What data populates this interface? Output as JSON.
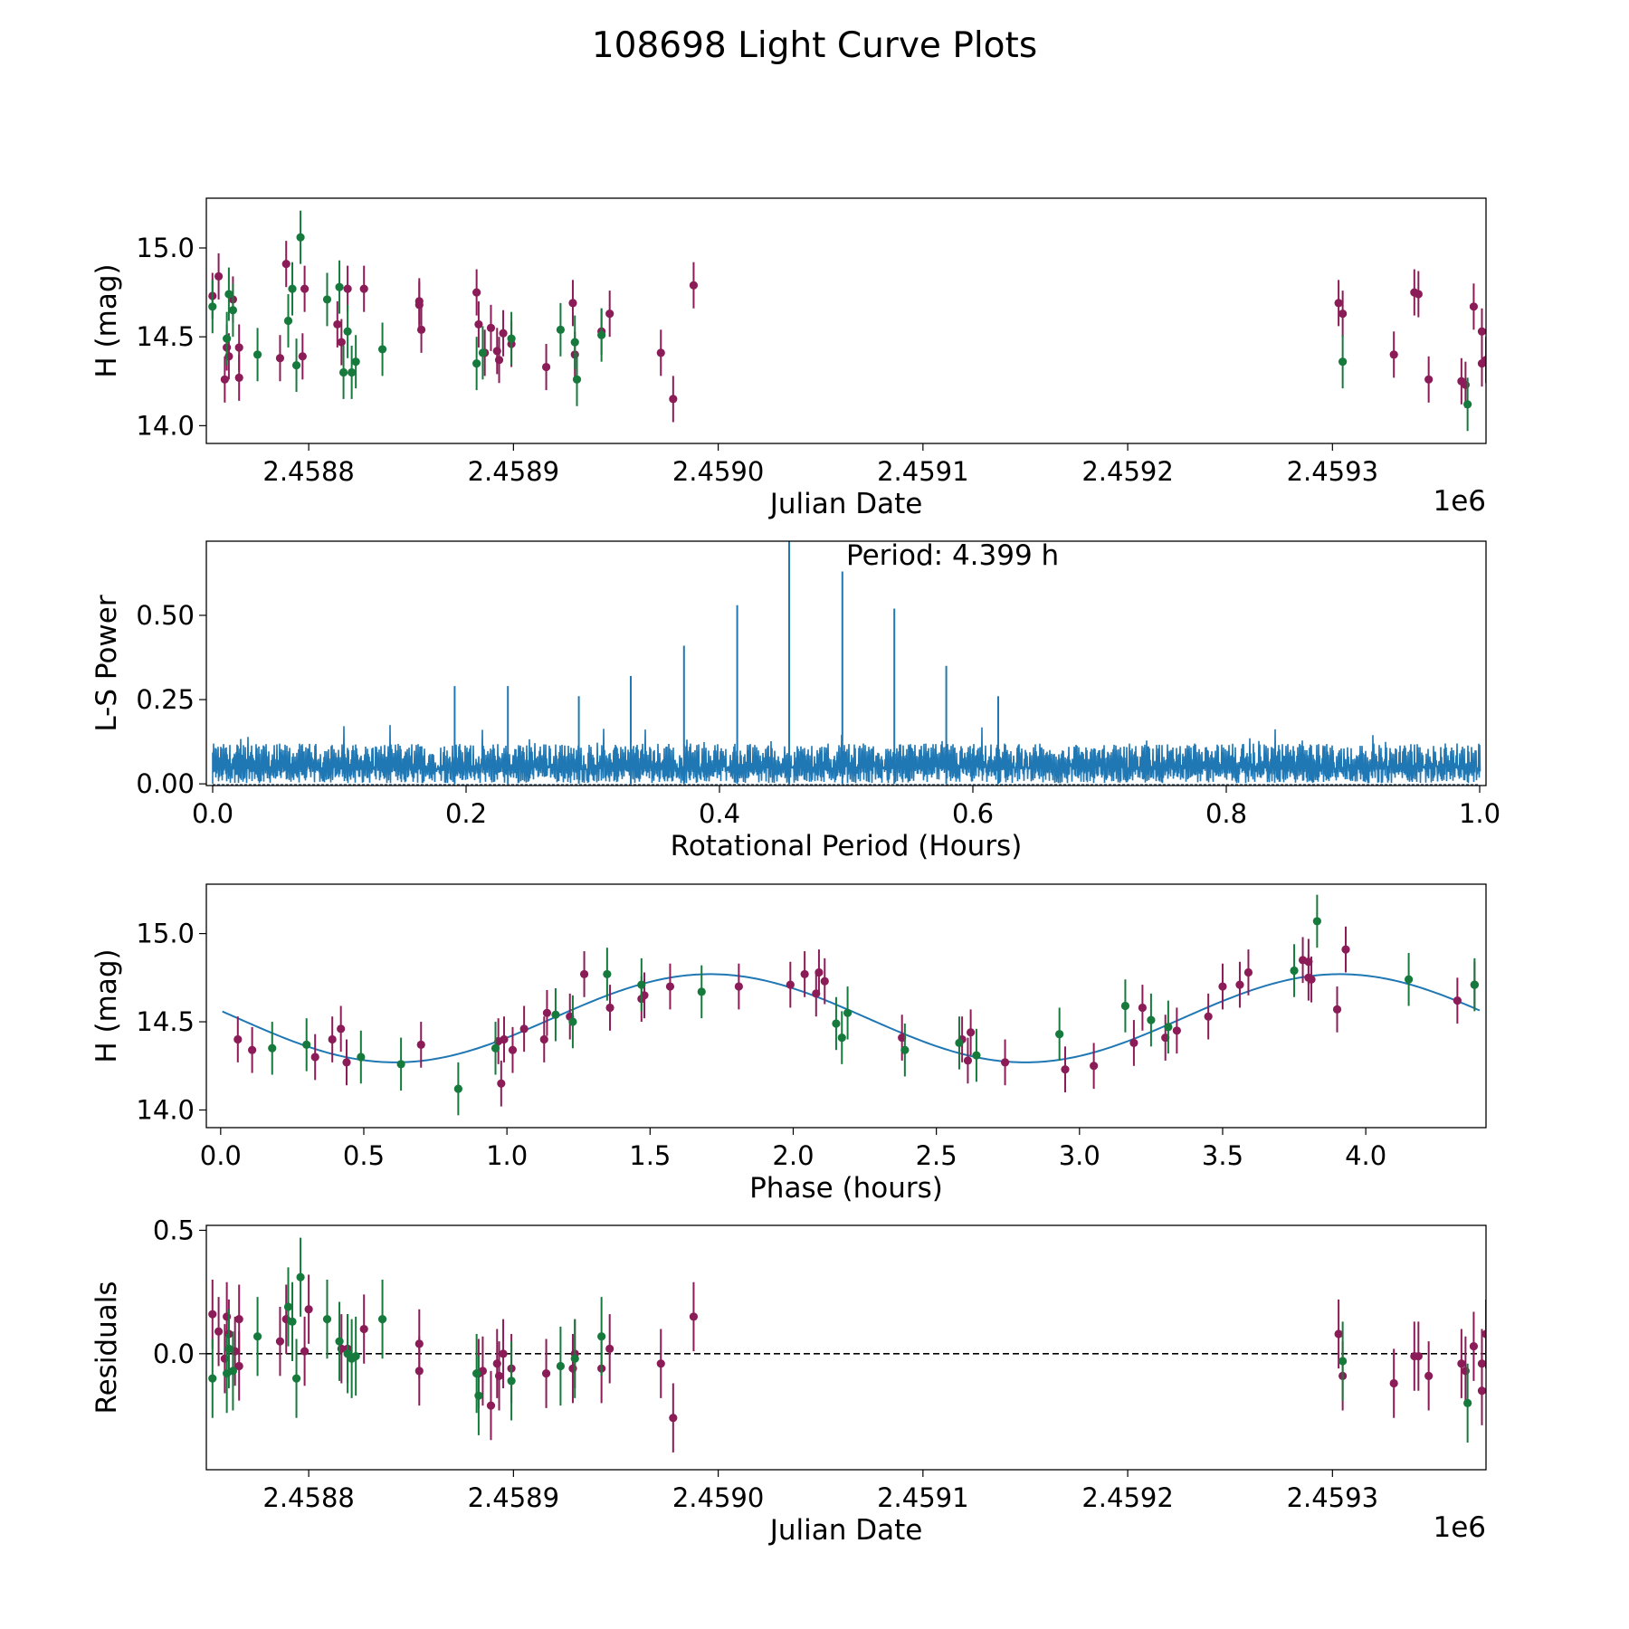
{
  "figure": {
    "title": "108698 Light Curve Plots"
  },
  "colors": {
    "pink": "#8c1c58",
    "green": "#167a3c",
    "blue": "#1f77b4"
  },
  "chart_data": [
    {
      "id": "lc",
      "type": "scatter",
      "xlabel": "Julian Date",
      "ylabel": "H (mag)",
      "offset_label": "1e6",
      "xlim": [
        2458720,
        2459345
      ],
      "ylim": [
        13.9,
        15.28
      ],
      "yinvert": false,
      "xticks": [
        2458770,
        2458870,
        2458970,
        2459070,
        2459170,
        2459270
      ],
      "xtick_labels": [
        "2.4588",
        "2.4589",
        "2.4590",
        "2.4591",
        "2.4592",
        "2.4593"
      ],
      "yticks": [
        14.0,
        14.5,
        15.0
      ],
      "ytick_labels": [
        "14.0",
        "14.5",
        "15.0"
      ],
      "series": [
        {
          "name": "pink",
          "color": "pink",
          "err": 0.13,
          "points": [
            [
              2458723,
              14.73
            ],
            [
              2458726,
              14.84
            ],
            [
              2458729,
              14.26
            ],
            [
              2458730,
              14.44
            ],
            [
              2458731,
              14.39
            ],
            [
              2458733,
              14.71
            ],
            [
              2458736,
              14.27
            ],
            [
              2458736,
              14.44
            ],
            [
              2458756,
              14.38
            ],
            [
              2458759,
              14.91
            ],
            [
              2458767,
              14.39
            ],
            [
              2458768,
              14.77
            ],
            [
              2458784,
              14.57
            ],
            [
              2458786,
              14.47
            ],
            [
              2458789,
              14.77
            ],
            [
              2458797,
              14.77
            ],
            [
              2458824,
              14.7
            ],
            [
              2458824,
              14.68
            ],
            [
              2458825,
              14.54
            ],
            [
              2458852,
              14.75
            ],
            [
              2458853,
              14.57
            ],
            [
              2458856,
              14.41
            ],
            [
              2458859,
              14.55
            ],
            [
              2458862,
              14.42
            ],
            [
              2458863,
              14.37
            ],
            [
              2458865,
              14.52
            ],
            [
              2458869,
              14.46
            ],
            [
              2458886,
              14.33
            ],
            [
              2458899,
              14.69
            ],
            [
              2458900,
              14.4
            ],
            [
              2458913,
              14.53
            ],
            [
              2458917,
              14.63
            ],
            [
              2458942,
              14.41
            ],
            [
              2458948,
              14.15
            ],
            [
              2458958,
              14.79
            ],
            [
              2459273,
              14.69
            ],
            [
              2459275,
              14.63
            ],
            [
              2459300,
              14.4
            ],
            [
              2459310,
              14.75
            ],
            [
              2459312,
              14.74
            ],
            [
              2459317,
              14.26
            ],
            [
              2459333,
              14.25
            ],
            [
              2459335,
              14.23
            ],
            [
              2459339,
              14.67
            ],
            [
              2459343,
              14.53
            ],
            [
              2459343,
              14.35
            ],
            [
              2459345,
              14.37
            ],
            [
              2459347,
              14.3
            ]
          ]
        },
        {
          "name": "green",
          "color": "green",
          "err": 0.15,
          "points": [
            [
              2458723,
              14.67
            ],
            [
              2458730,
              14.49
            ],
            [
              2458731,
              14.74
            ],
            [
              2458733,
              14.65
            ],
            [
              2458745,
              14.4
            ],
            [
              2458760,
              14.59
            ],
            [
              2458762,
              14.77
            ],
            [
              2458764,
              14.34
            ],
            [
              2458766,
              15.06
            ],
            [
              2458779,
              14.71
            ],
            [
              2458785,
              14.78
            ],
            [
              2458787,
              14.3
            ],
            [
              2458789,
              14.53
            ],
            [
              2458791,
              14.3
            ],
            [
              2458793,
              14.36
            ],
            [
              2458806,
              14.43
            ],
            [
              2458852,
              14.35
            ],
            [
              2458855,
              14.41
            ],
            [
              2458869,
              14.49
            ],
            [
              2458893,
              14.54
            ],
            [
              2458900,
              14.47
            ],
            [
              2458901,
              14.26
            ],
            [
              2458913,
              14.51
            ],
            [
              2459275,
              14.36
            ],
            [
              2459336,
              14.12
            ]
          ]
        }
      ]
    },
    {
      "id": "ls",
      "type": "line",
      "xlabel": "Rotational Period (Hours)",
      "ylabel": "L-S Power",
      "annotation": "Period: 4.399 h",
      "xlim": [
        -0.005,
        1.005
      ],
      "ylim": [
        -0.005,
        0.72
      ],
      "xticks": [
        0.0,
        0.2,
        0.4,
        0.6,
        0.8,
        1.0
      ],
      "xtick_labels": [
        "0.0",
        "0.2",
        "0.4",
        "0.6",
        "0.8",
        "1.0"
      ],
      "yticks": [
        0.0,
        0.25,
        0.5
      ],
      "ytick_labels": [
        "0.00",
        "0.25",
        "0.50"
      ],
      "noise": {
        "x_range": [
          0.0,
          1.0
        ],
        "typical_max": 0.12,
        "max": 0.2
      },
      "peaks": [
        {
          "x": 0.455,
          "y": 0.72
        },
        {
          "x": 0.497,
          "y": 0.63
        },
        {
          "x": 0.414,
          "y": 0.53
        },
        {
          "x": 0.538,
          "y": 0.52
        },
        {
          "x": 0.372,
          "y": 0.41
        },
        {
          "x": 0.579,
          "y": 0.35
        },
        {
          "x": 0.33,
          "y": 0.32
        },
        {
          "x": 0.191,
          "y": 0.29
        },
        {
          "x": 0.233,
          "y": 0.29
        },
        {
          "x": 0.289,
          "y": 0.26
        },
        {
          "x": 0.62,
          "y": 0.26
        }
      ]
    },
    {
      "id": "phase",
      "type": "scatter",
      "xlabel": "Phase (hours)",
      "ylabel": "H (mag)",
      "xlim": [
        -0.05,
        4.42
      ],
      "ylim": [
        13.9,
        15.28
      ],
      "xticks": [
        0.0,
        0.5,
        1.0,
        1.5,
        2.0,
        2.5,
        3.0,
        3.5,
        4.0
      ],
      "xtick_labels": [
        "0.0",
        "0.5",
        "1.0",
        "1.5",
        "2.0",
        "2.5",
        "3.0",
        "3.5",
        "4.0"
      ],
      "yticks": [
        14.0,
        14.5,
        15.0
      ],
      "ytick_labels": [
        "14.0",
        "14.5",
        "15.0"
      ],
      "model": {
        "mean": 14.52,
        "amplitude": 0.25,
        "period": 2.2,
        "max_phase": 1.71
      },
      "series": [
        {
          "name": "pink",
          "color": "pink",
          "err": 0.13,
          "points": [
            [
              0.06,
              14.4
            ],
            [
              0.11,
              14.34
            ],
            [
              0.33,
              14.3
            ],
            [
              0.39,
              14.4
            ],
            [
              0.42,
              14.46
            ],
            [
              0.44,
              14.27
            ],
            [
              0.7,
              14.37
            ],
            [
              0.97,
              14.39
            ],
            [
              0.99,
              14.4
            ],
            [
              0.98,
              14.15
            ],
            [
              1.02,
              14.34
            ],
            [
              1.06,
              14.46
            ],
            [
              1.13,
              14.4
            ],
            [
              1.14,
              14.55
            ],
            [
              1.22,
              14.53
            ],
            [
              1.27,
              14.77
            ],
            [
              1.36,
              14.58
            ],
            [
              1.47,
              14.63
            ],
            [
              1.48,
              14.65
            ],
            [
              1.57,
              14.7
            ],
            [
              1.81,
              14.7
            ],
            [
              1.99,
              14.71
            ],
            [
              2.04,
              14.77
            ],
            [
              2.08,
              14.66
            ],
            [
              2.09,
              14.78
            ],
            [
              2.11,
              14.73
            ],
            [
              2.38,
              14.41
            ],
            [
              2.59,
              14.4
            ],
            [
              2.61,
              14.28
            ],
            [
              2.62,
              14.44
            ],
            [
              2.74,
              14.27
            ],
            [
              2.95,
              14.23
            ],
            [
              3.05,
              14.25
            ],
            [
              3.19,
              14.38
            ],
            [
              3.22,
              14.58
            ],
            [
              3.3,
              14.41
            ],
            [
              3.34,
              14.45
            ],
            [
              3.45,
              14.53
            ],
            [
              3.5,
              14.7
            ],
            [
              3.56,
              14.71
            ],
            [
              3.59,
              14.78
            ],
            [
              3.78,
              14.85
            ],
            [
              3.8,
              14.84
            ],
            [
              3.81,
              14.74
            ],
            [
              3.8,
              14.75
            ],
            [
              3.9,
              14.57
            ],
            [
              3.93,
              14.91
            ],
            [
              4.32,
              14.62
            ],
            [
              4.38,
              14.71
            ]
          ]
        },
        {
          "name": "green",
          "color": "green",
          "err": 0.15,
          "points": [
            [
              0.18,
              14.35
            ],
            [
              0.3,
              14.37
            ],
            [
              0.49,
              14.3
            ],
            [
              0.63,
              14.26
            ],
            [
              0.83,
              14.12
            ],
            [
              0.96,
              14.35
            ],
            [
              1.17,
              14.54
            ],
            [
              1.23,
              14.5
            ],
            [
              1.35,
              14.77
            ],
            [
              1.47,
              14.71
            ],
            [
              1.68,
              14.67
            ],
            [
              2.15,
              14.49
            ],
            [
              2.17,
              14.41
            ],
            [
              2.19,
              14.55
            ],
            [
              2.39,
              14.34
            ],
            [
              2.58,
              14.38
            ],
            [
              2.64,
              14.31
            ],
            [
              2.93,
              14.43
            ],
            [
              3.16,
              14.59
            ],
            [
              3.25,
              14.51
            ],
            [
              3.31,
              14.47
            ],
            [
              3.75,
              14.79
            ],
            [
              3.83,
              15.07
            ],
            [
              4.15,
              14.74
            ],
            [
              4.38,
              14.71
            ]
          ]
        }
      ]
    },
    {
      "id": "resid",
      "type": "scatter",
      "xlabel": "Julian Date",
      "ylabel": "Residuals",
      "offset_label": "1e6",
      "xlim": [
        2458720,
        2459345
      ],
      "ylim": [
        -0.47,
        0.52
      ],
      "xticks": [
        2458770,
        2458870,
        2458970,
        2459070,
        2459170,
        2459270
      ],
      "xtick_labels": [
        "2.4588",
        "2.4589",
        "2.4590",
        "2.4591",
        "2.4592",
        "2.4593"
      ],
      "yticks": [
        0.0,
        0.5
      ],
      "ytick_labels": [
        "0.0",
        "0.5"
      ],
      "hline": 0.0,
      "series": [
        {
          "name": "pink",
          "color": "pink",
          "err": 0.14,
          "points": [
            [
              2458723,
              0.16
            ],
            [
              2458726,
              0.09
            ],
            [
              2458729,
              -0.02
            ],
            [
              2458730,
              0.15
            ],
            [
              2458731,
              0.08
            ],
            [
              2458734,
              0.01
            ],
            [
              2458736,
              0.14
            ],
            [
              2458736,
              -0.05
            ],
            [
              2458756,
              0.05
            ],
            [
              2458759,
              0.14
            ],
            [
              2458768,
              0.01
            ],
            [
              2458770,
              0.18
            ],
            [
              2458786,
              0.02
            ],
            [
              2458789,
              0.02
            ],
            [
              2458797,
              0.1
            ],
            [
              2458824,
              0.04
            ],
            [
              2458824,
              -0.07
            ],
            [
              2458853,
              -0.08
            ],
            [
              2458855,
              -0.07
            ],
            [
              2458859,
              -0.21
            ],
            [
              2458862,
              -0.04
            ],
            [
              2458863,
              -0.09
            ],
            [
              2458865,
              0.0
            ],
            [
              2458869,
              -0.06
            ],
            [
              2458886,
              -0.08
            ],
            [
              2458899,
              -0.06
            ],
            [
              2458900,
              0.0
            ],
            [
              2458913,
              -0.06
            ],
            [
              2458917,
              0.02
            ],
            [
              2458942,
              -0.04
            ],
            [
              2458948,
              -0.26
            ],
            [
              2458958,
              0.15
            ],
            [
              2459273,
              0.08
            ],
            [
              2459275,
              -0.09
            ],
            [
              2459300,
              -0.12
            ],
            [
              2459310,
              -0.01
            ],
            [
              2459312,
              -0.01
            ],
            [
              2459317,
              -0.09
            ],
            [
              2459333,
              -0.04
            ],
            [
              2459335,
              -0.07
            ],
            [
              2459339,
              0.03
            ],
            [
              2459343,
              -0.04
            ],
            [
              2459343,
              -0.15
            ],
            [
              2459345,
              0.08
            ],
            [
              2459347,
              -0.06
            ]
          ]
        },
        {
          "name": "green",
          "color": "green",
          "err": 0.16,
          "points": [
            [
              2458723,
              -0.1
            ],
            [
              2458730,
              -0.08
            ],
            [
              2458731,
              0.02
            ],
            [
              2458733,
              -0.07
            ],
            [
              2458745,
              0.07
            ],
            [
              2458760,
              0.19
            ],
            [
              2458762,
              0.13
            ],
            [
              2458764,
              -0.1
            ],
            [
              2458766,
              0.31
            ],
            [
              2458779,
              0.14
            ],
            [
              2458785,
              0.05
            ],
            [
              2458789,
              0.0
            ],
            [
              2458791,
              -0.02
            ],
            [
              2458793,
              -0.01
            ],
            [
              2458806,
              0.14
            ],
            [
              2458852,
              -0.08
            ],
            [
              2458853,
              -0.17
            ],
            [
              2458869,
              -0.11
            ],
            [
              2458893,
              -0.05
            ],
            [
              2458900,
              -0.02
            ],
            [
              2458913,
              0.07
            ],
            [
              2459275,
              -0.03
            ],
            [
              2459336,
              -0.2
            ]
          ]
        }
      ]
    }
  ]
}
